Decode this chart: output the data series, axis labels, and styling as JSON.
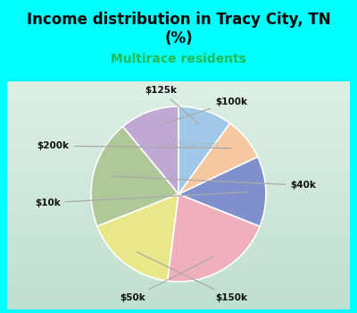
{
  "title": "Income distribution in Tracy City, TN\n(%)",
  "subtitle": "Multirace residents",
  "title_color": "#000000",
  "subtitle_color": "#22bb55",
  "background_color": "#00ffff",
  "chart_bg_gradient_top": "#d8eee0",
  "chart_bg_gradient_bottom": "#c0e8d8",
  "labels": [
    "$100k",
    "$40k",
    "$150k",
    "$50k",
    "$10k",
    "$200k",
    "$125k"
  ],
  "values": [
    11,
    20,
    17,
    21,
    13,
    8,
    10
  ],
  "colors": [
    "#c0a8d5",
    "#b0c898",
    "#e8e888",
    "#f0b0bb",
    "#8090cc",
    "#f5c8a0",
    "#a0c8e8"
  ],
  "start_angle": 90,
  "edge_color": "#ffffff",
  "watermark": "CityData.com"
}
